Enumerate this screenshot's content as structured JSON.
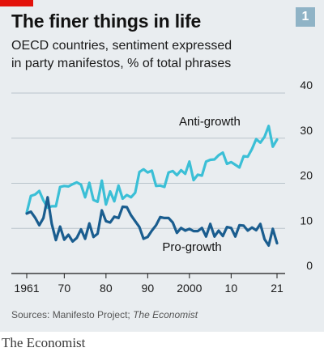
{
  "header": {
    "title": "The finer things in life",
    "chart_number": "1",
    "subtitle_line1": "OECD countries, sentiment expressed",
    "subtitle_line2": "in party manifestos, % of total phrases"
  },
  "footer": {
    "source_prefix": "Sources: Manifesto Project; ",
    "source_italic": "The Economist",
    "brand": "The Economist"
  },
  "colors": {
    "anti_growth": "#3bbfd6",
    "pro_growth": "#1a5d8f",
    "background": "#e9edf0",
    "accent": "#e3120b"
  },
  "chart_data": {
    "type": "line",
    "title": "The finer things in life",
    "x_tick_labels": [
      "1961",
      "70",
      "80",
      "90",
      "2000",
      "10",
      "21"
    ],
    "x_tick_years": [
      1961,
      1970,
      1980,
      1990,
      2000,
      2010,
      2021
    ],
    "y_ticks": [
      0,
      10,
      20,
      30,
      40
    ],
    "xlim": [
      1961,
      2021
    ],
    "ylim": [
      0,
      40
    ],
    "grid": true,
    "y_axis_side": "right",
    "x": [
      1961,
      1962,
      1963,
      1964,
      1965,
      1966,
      1967,
      1968,
      1969,
      1970,
      1971,
      1972,
      1973,
      1974,
      1975,
      1976,
      1977,
      1978,
      1979,
      1980,
      1981,
      1982,
      1983,
      1984,
      1985,
      1986,
      1987,
      1988,
      1989,
      1990,
      1991,
      1992,
      1993,
      1994,
      1995,
      1996,
      1997,
      1998,
      1999,
      2000,
      2001,
      2002,
      2003,
      2004,
      2005,
      2006,
      2007,
      2008,
      2009,
      2010,
      2011,
      2012,
      2013,
      2014,
      2015,
      2016,
      2017,
      2018,
      2019,
      2020,
      2021
    ],
    "series": [
      {
        "name": "Anti-growth",
        "values": [
          13.5,
          17.2,
          17.5,
          18.3,
          16.2,
          14.6,
          14.9,
          14.9,
          19.2,
          19.4,
          19.3,
          19.8,
          20.2,
          19.7,
          16.9,
          20.1,
          16.3,
          15.9,
          20.6,
          15.3,
          18.2,
          16.0,
          19.5,
          16.6,
          17.4,
          16.9,
          17.9,
          22.5,
          23.1,
          22.4,
          22.8,
          19.4,
          19.5,
          19.2,
          22.4,
          22.7,
          21.8,
          22.9,
          22.1,
          24.8,
          20.7,
          21.9,
          21.7,
          24.8,
          25.2,
          25.3,
          26.2,
          26.8,
          24.3,
          24.7,
          24.1,
          23.5,
          26.0,
          25.9,
          27.6,
          29.8,
          29.0,
          30.3,
          32.7,
          28.1,
          29.7
        ]
      },
      {
        "name": "Pro-growth",
        "values": [
          13.3,
          13.7,
          12.4,
          10.7,
          12.3,
          16.9,
          11.0,
          7.4,
          10.4,
          7.5,
          8.6,
          7.1,
          7.9,
          9.8,
          7.7,
          11.1,
          8.1,
          8.8,
          14.0,
          11.6,
          11.3,
          12.6,
          12.3,
          14.8,
          14.7,
          12.9,
          11.6,
          10.3,
          7.7,
          8.1,
          9.5,
          10.7,
          12.5,
          12.3,
          12.3,
          11.3,
          9.0,
          10.1,
          9.5,
          9.9,
          9.4,
          9.4,
          10.1,
          8.2,
          11.0,
          8.2,
          9.5,
          8.3,
          10.3,
          10.1,
          8.2,
          10.7,
          10.6,
          9.5,
          10.2,
          9.6,
          11.0,
          7.6,
          6.2,
          9.9,
          6.7
        ]
      }
    ]
  }
}
